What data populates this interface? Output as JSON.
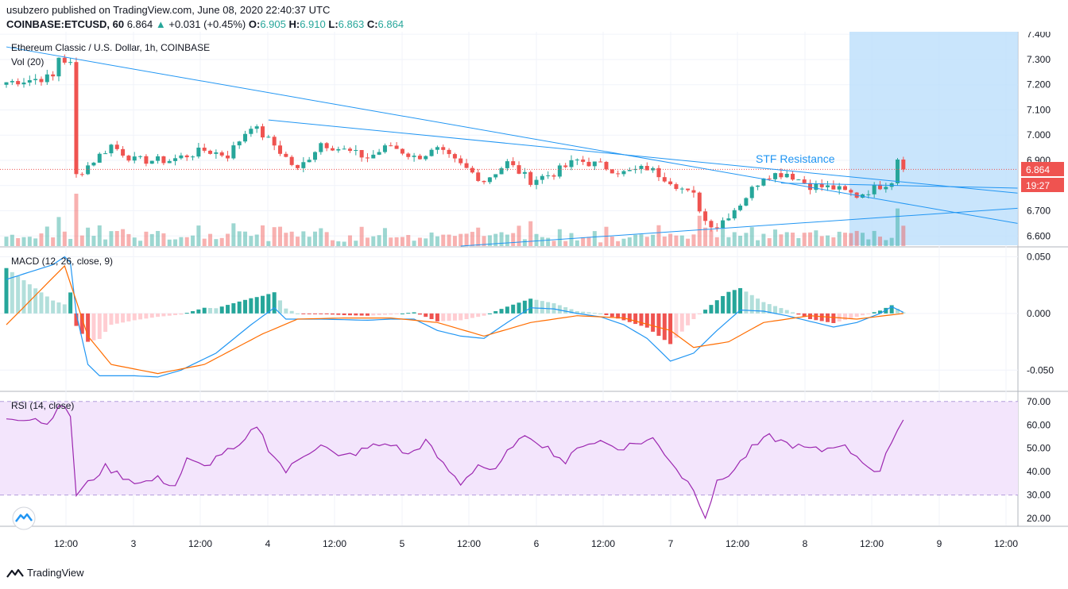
{
  "header": {
    "published": "usubzero published on TradingView.com, June 08, 2020 22:40:37 UTC",
    "symbol": "COINBASE:ETCUSD, 60",
    "last": "6.864",
    "change": "+0.031 (+0.45%)",
    "o_label": "O:",
    "o": "6.905",
    "h_label": "H:",
    "h": "6.910",
    "l_label": "L:",
    "l": "6.863",
    "c_label": "C:",
    "c": "6.864"
  },
  "pane_titles": {
    "main": "Ethereum Classic / U.S. Dollar, 1h, COINBASE",
    "vol": "Vol (20)",
    "macd": "MACD (12, 26, close, 9)",
    "rsi": "RSI (14, close)"
  },
  "annotation": "STF Resistance",
  "price_badge": "6.864",
  "countdown_badge": "19:27",
  "footer": {
    "brand": "TradingView"
  },
  "colors": {
    "up": "#26a69a",
    "down": "#ef5350",
    "line": "#2196f3",
    "signal": "#ff6d00",
    "rsi": "#9c27b0",
    "rsi_band": "#f3e5fc",
    "zone": "#bbdefb"
  },
  "chart_data": [
    {
      "type": "candlestick",
      "title": "Ethereum Classic / U.S. Dollar, 1h, COINBASE",
      "y_ticks": [
        "7.400",
        "7.300",
        "7.200",
        "7.100",
        "7.000",
        "6.900",
        "6.800",
        "6.700",
        "6.600"
      ],
      "ylim": [
        6.56,
        7.41
      ],
      "x_ticks": [
        "12:00",
        "3",
        "12:00",
        "4",
        "12:00",
        "5",
        "12:00",
        "6",
        "12:00",
        "7",
        "12:00",
        "8",
        "12:00",
        "9",
        "12:00"
      ],
      "bars": 155,
      "close_anchors": [
        [
          0,
          7.21
        ],
        [
          8,
          7.23
        ],
        [
          9,
          7.31
        ],
        [
          11,
          7.28
        ],
        [
          12,
          6.84
        ],
        [
          14,
          6.88
        ],
        [
          18,
          6.96
        ],
        [
          22,
          6.9
        ],
        [
          28,
          6.9
        ],
        [
          34,
          6.94
        ],
        [
          38,
          6.92
        ],
        [
          42,
          7.04
        ],
        [
          46,
          6.96
        ],
        [
          50,
          6.86
        ],
        [
          54,
          6.97
        ],
        [
          58,
          6.94
        ],
        [
          62,
          6.91
        ],
        [
          66,
          6.96
        ],
        [
          70,
          6.91
        ],
        [
          74,
          6.94
        ],
        [
          78,
          6.88
        ],
        [
          82,
          6.82
        ],
        [
          86,
          6.89
        ],
        [
          90,
          6.82
        ],
        [
          94,
          6.85
        ],
        [
          98,
          6.9
        ],
        [
          102,
          6.88
        ],
        [
          106,
          6.85
        ],
        [
          110,
          6.87
        ],
        [
          114,
          6.82
        ],
        [
          117,
          6.77
        ],
        [
          118,
          6.76
        ],
        [
          120,
          6.66
        ],
        [
          122,
          6.64
        ],
        [
          126,
          6.73
        ],
        [
          130,
          6.84
        ],
        [
          134,
          6.85
        ],
        [
          138,
          6.8
        ],
        [
          142,
          6.79
        ],
        [
          146,
          6.76
        ],
        [
          150,
          6.8
        ],
        [
          152,
          6.82
        ],
        [
          153,
          6.91
        ],
        [
          154,
          6.864
        ]
      ],
      "last_price": 6.864,
      "series": [
        {
          "name": "Vol (20)",
          "kind": "volume"
        }
      ]
    },
    {
      "type": "line",
      "title": "MACD (12, 26, close, 9)",
      "y_ticks": [
        "0.050",
        "0.000",
        "-0.050"
      ],
      "ylim": [
        -0.068,
        0.058
      ],
      "macd_anchors": [
        [
          0,
          0.03
        ],
        [
          8,
          0.043
        ],
        [
          10,
          0.05
        ],
        [
          11,
          0.045
        ],
        [
          12,
          0.0
        ],
        [
          14,
          -0.045
        ],
        [
          16,
          -0.055
        ],
        [
          22,
          -0.055
        ],
        [
          26,
          -0.056
        ],
        [
          30,
          -0.05
        ],
        [
          36,
          -0.035
        ],
        [
          42,
          -0.01
        ],
        [
          46,
          0.005
        ],
        [
          48,
          -0.005
        ],
        [
          54,
          -0.005
        ],
        [
          62,
          -0.006
        ],
        [
          66,
          -0.005
        ],
        [
          70,
          -0.005
        ],
        [
          74,
          -0.015
        ],
        [
          78,
          -0.02
        ],
        [
          82,
          -0.022
        ],
        [
          86,
          -0.008
        ],
        [
          90,
          0.005
        ],
        [
          94,
          0.004
        ],
        [
          98,
          -0.0
        ],
        [
          102,
          -0.003
        ],
        [
          106,
          -0.01
        ],
        [
          110,
          -0.022
        ],
        [
          114,
          -0.042
        ],
        [
          118,
          -0.035
        ],
        [
          122,
          -0.015
        ],
        [
          126,
          0.003
        ],
        [
          130,
          0.002
        ],
        [
          134,
          -0.002
        ],
        [
          138,
          -0.007
        ],
        [
          142,
          -0.012
        ],
        [
          146,
          -0.008
        ],
        [
          150,
          0.0
        ],
        [
          152,
          0.006
        ],
        [
          154,
          0.001
        ]
      ],
      "signal_anchors": [
        [
          0,
          -0.01
        ],
        [
          10,
          0.042
        ],
        [
          14,
          -0.02
        ],
        [
          18,
          -0.045
        ],
        [
          26,
          -0.053
        ],
        [
          34,
          -0.045
        ],
        [
          44,
          -0.018
        ],
        [
          50,
          -0.005
        ],
        [
          58,
          -0.004
        ],
        [
          66,
          -0.004
        ],
        [
          74,
          -0.008
        ],
        [
          82,
          -0.02
        ],
        [
          90,
          -0.008
        ],
        [
          98,
          -0.002
        ],
        [
          106,
          -0.004
        ],
        [
          114,
          -0.015
        ],
        [
          118,
          -0.03
        ],
        [
          124,
          -0.025
        ],
        [
          130,
          -0.008
        ],
        [
          138,
          -0.002
        ],
        [
          146,
          -0.005
        ],
        [
          154,
          0.0
        ]
      ],
      "series": [
        {
          "name": "MACD"
        },
        {
          "name": "Signal"
        },
        {
          "name": "Histogram"
        }
      ]
    },
    {
      "type": "line",
      "title": "RSI (14, close)",
      "y_ticks": [
        "70.00",
        "60.00",
        "50.00",
        "40.00",
        "30.00",
        "20.00"
      ],
      "ylim": [
        17,
        74
      ],
      "band": [
        30,
        70
      ],
      "anchors": [
        [
          0,
          63
        ],
        [
          5,
          63
        ],
        [
          7,
          60
        ],
        [
          9,
          69
        ],
        [
          11,
          64
        ],
        [
          12,
          30
        ],
        [
          14,
          35
        ],
        [
          17,
          42
        ],
        [
          20,
          38
        ],
        [
          23,
          35
        ],
        [
          26,
          37
        ],
        [
          29,
          34
        ],
        [
          31,
          45
        ],
        [
          34,
          42
        ],
        [
          37,
          48
        ],
        [
          40,
          50
        ],
        [
          43,
          60
        ],
        [
          45,
          50
        ],
        [
          48,
          40
        ],
        [
          51,
          47
        ],
        [
          54,
          52
        ],
        [
          57,
          46
        ],
        [
          60,
          48
        ],
        [
          63,
          51
        ],
        [
          66,
          52
        ],
        [
          69,
          47
        ],
        [
          72,
          53
        ],
        [
          75,
          43
        ],
        [
          78,
          35
        ],
        [
          81,
          43
        ],
        [
          84,
          40
        ],
        [
          87,
          52
        ],
        [
          90,
          55
        ],
        [
          93,
          50
        ],
        [
          96,
          44
        ],
        [
          99,
          52
        ],
        [
          102,
          53
        ],
        [
          105,
          50
        ],
        [
          108,
          52
        ],
        [
          111,
          54
        ],
        [
          114,
          45
        ],
        [
          116,
          38
        ],
        [
          118,
          33
        ],
        [
          120,
          21
        ],
        [
          122,
          35
        ],
        [
          125,
          41
        ],
        [
          128,
          50
        ],
        [
          131,
          55
        ],
        [
          134,
          52
        ],
        [
          137,
          50
        ],
        [
          140,
          49
        ],
        [
          143,
          52
        ],
        [
          146,
          47
        ],
        [
          149,
          40
        ],
        [
          150,
          39
        ],
        [
          152,
          54
        ],
        [
          154,
          62
        ],
        [
          155,
          58
        ]
      ],
      "series": [
        {
          "name": "RSI"
        }
      ]
    }
  ]
}
